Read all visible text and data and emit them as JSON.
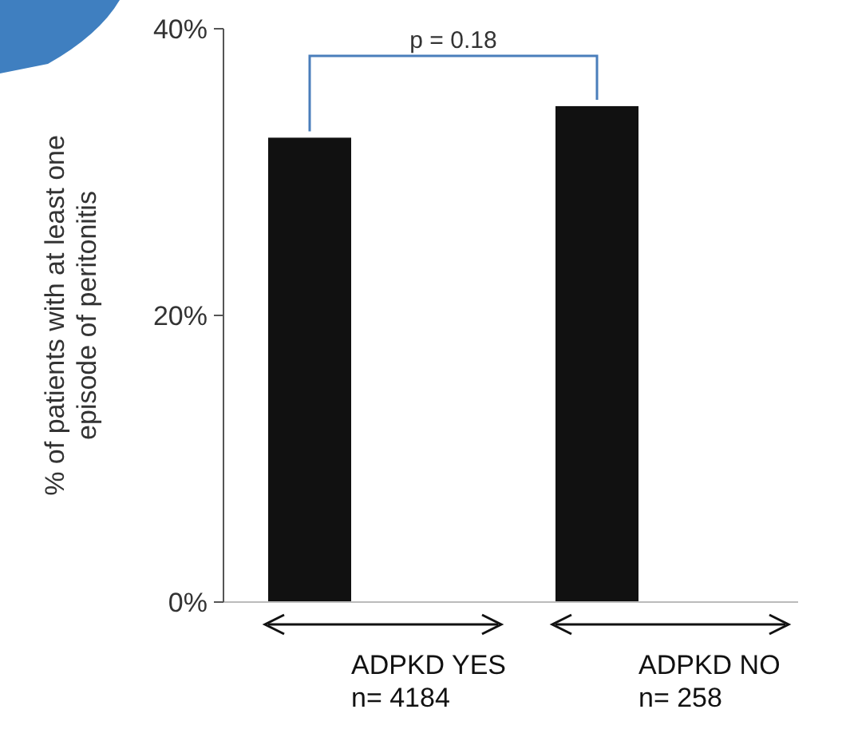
{
  "chart_data": {
    "type": "bar",
    "ylabel": "% of patients with at least one\nepisode of peritonitis",
    "categories": [
      "ADPKD YES\nn= 4184",
      "ADPKD NO\nn= 258"
    ],
    "values": [
      32.4,
      34.6
    ],
    "color": "#111111",
    "ylim": [
      0,
      40
    ],
    "yticks": [
      {
        "value": 0,
        "label": "0%"
      },
      {
        "value": 20,
        "label": "20%"
      },
      {
        "value": 40,
        "label": "40%"
      }
    ],
    "grid": false,
    "annotations": [
      "p = 0.18"
    ]
  }
}
